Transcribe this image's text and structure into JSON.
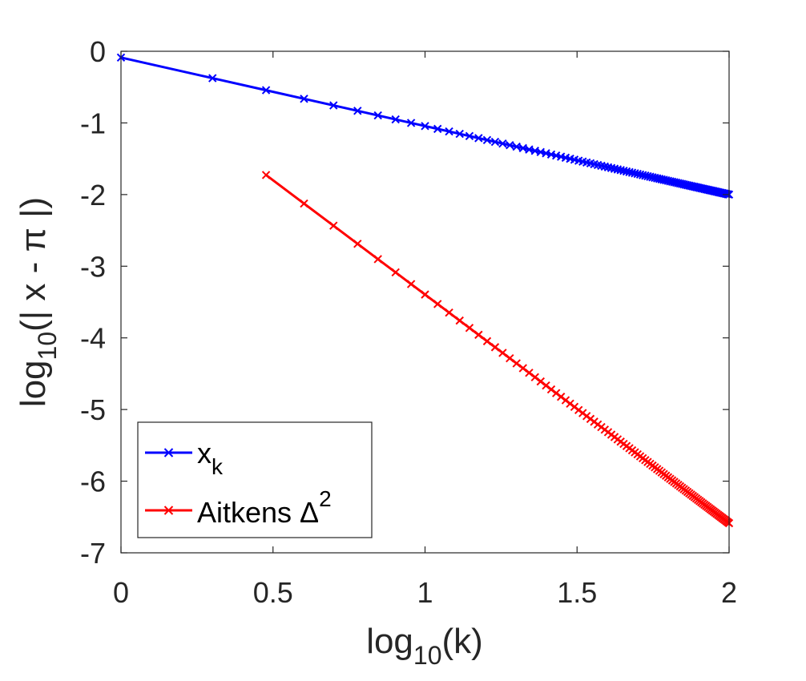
{
  "chart_data": {
    "type": "line",
    "title": "",
    "xlabel": {
      "main": "log",
      "sub": "10",
      "tail": "(k)"
    },
    "ylabel": {
      "main": "log",
      "sub": "10",
      "tail": "(| x - π |)"
    },
    "xlim": [
      0,
      2
    ],
    "ylim": [
      -7,
      0
    ],
    "xticks": [
      "0",
      "0.5",
      "1",
      "1.5",
      "2"
    ],
    "yticks": [
      "0",
      "-1",
      "-2",
      "-3",
      "-4",
      "-5",
      "-6",
      "-7"
    ],
    "grid": false,
    "legend_position": "bottom-left",
    "k_range": [
      1,
      100
    ],
    "series": [
      {
        "name": "x_k",
        "legend_main": "x",
        "legend_sub": "k",
        "color": "#0000ff",
        "marker": "x",
        "model": "linear",
        "start_k": 1,
        "intercept": -0.0871,
        "slope": -0.9564
      },
      {
        "name": "Aitkens Delta^2",
        "legend_main": "Aitkens Δ",
        "legend_sup": "2",
        "color": "#ff0000",
        "marker": "x",
        "model": "linear",
        "start_k": 3,
        "intercept": -0.2042,
        "slope": -3.191
      }
    ]
  }
}
